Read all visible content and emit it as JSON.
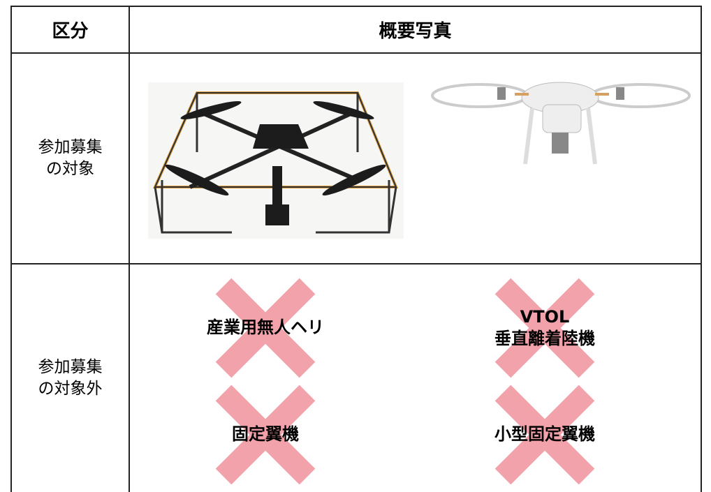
{
  "table": {
    "header": [
      "区分",
      "概要写真"
    ],
    "rows": [
      {
        "label": [
          "参加募集",
          "の対象"
        ]
      },
      {
        "label": [
          "参加募集",
          "の対象外"
        ],
        "excluded": [
          [
            "産業用無人ヘリ"
          ],
          [
            "VTOL",
            "垂直離着陸機"
          ],
          [
            "固定翼機"
          ],
          [
            "小型固定翼機"
          ]
        ]
      }
    ]
  }
}
